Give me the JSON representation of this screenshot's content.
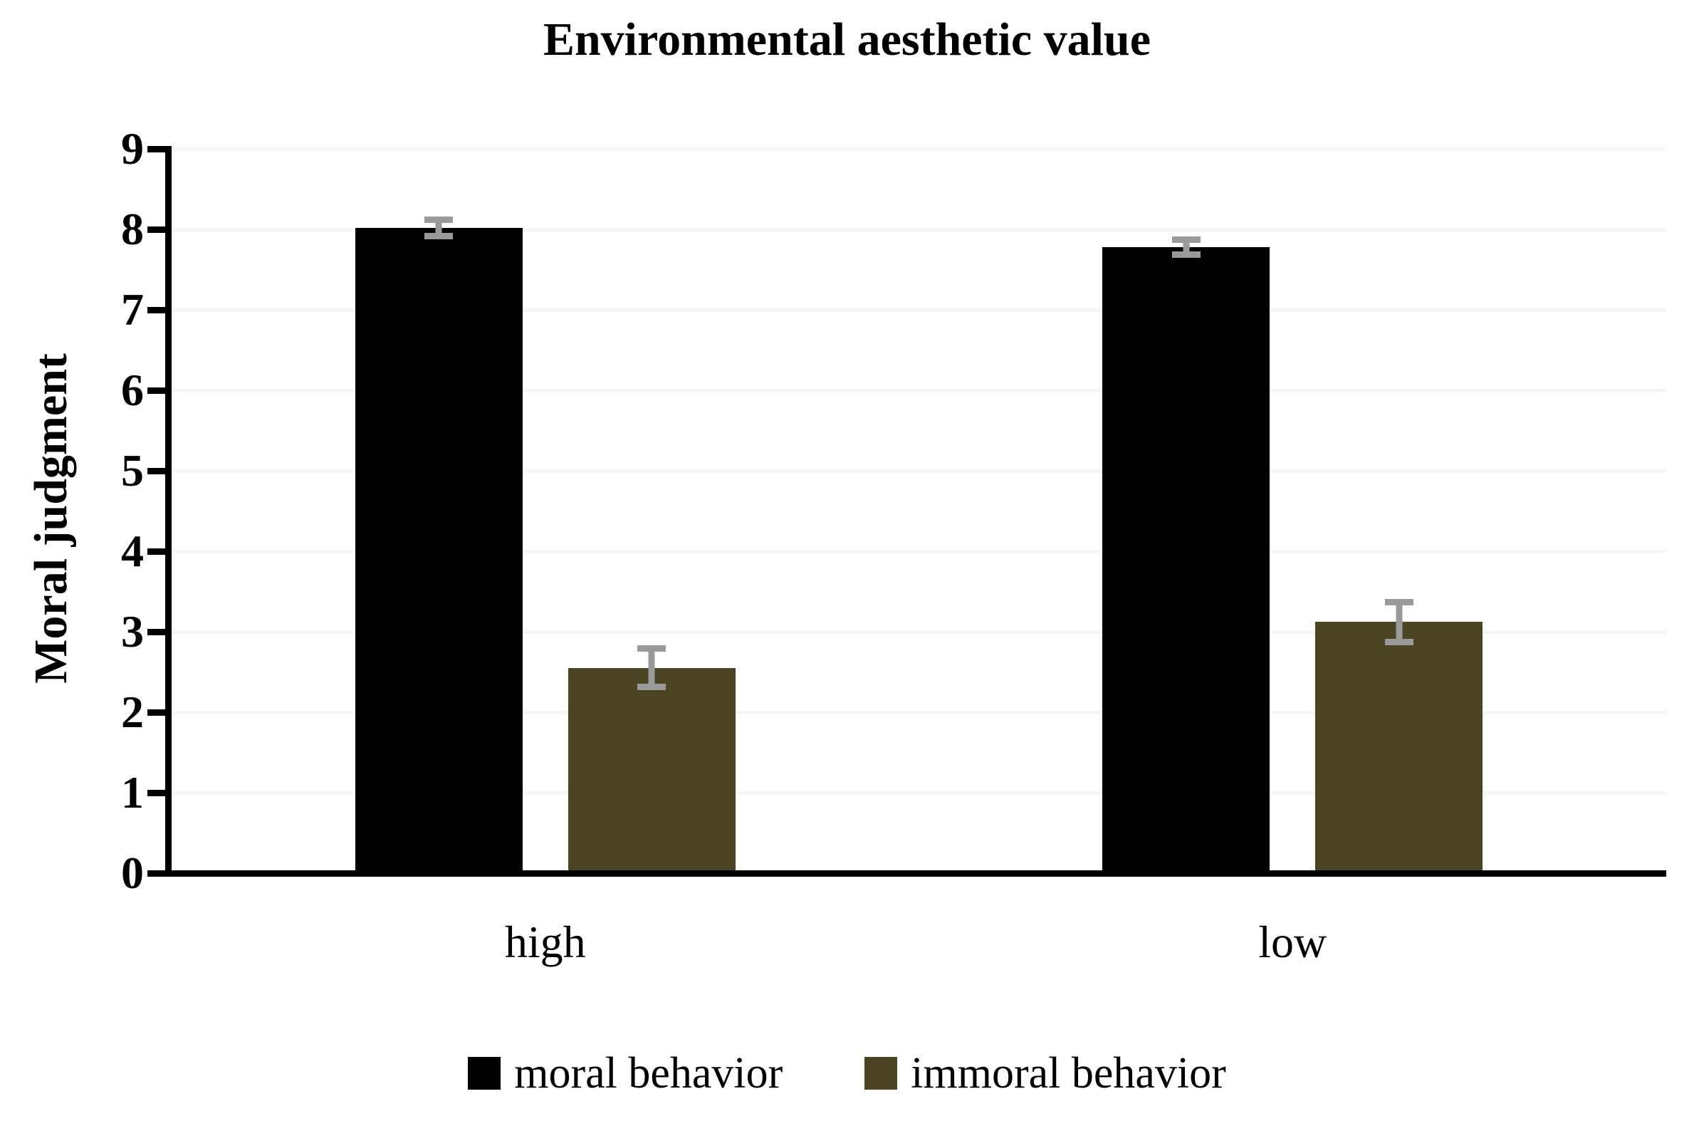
{
  "chart_data": {
    "type": "bar",
    "title": "Environmental aesthetic value",
    "ylabel": "Moral judgment",
    "xlabel": "",
    "categories": [
      "high",
      "low"
    ],
    "series": [
      {
        "name": "moral behavior",
        "color": "#000000",
        "values": [
          8.02,
          7.78
        ],
        "errors": [
          0.14,
          0.13
        ]
      },
      {
        "name": "immoral behavior",
        "color": "#4a4423",
        "values": [
          2.55,
          3.12
        ],
        "errors": [
          0.28,
          0.29
        ]
      }
    ],
    "ylim": [
      0,
      9
    ],
    "ytick_step": 1,
    "yticks": [
      0,
      1,
      2,
      3,
      4,
      5,
      6,
      7,
      8,
      9
    ],
    "grid": true,
    "legend_position": "bottom",
    "error_bar_color": "#9a9a9a",
    "gridline_color": "#f6f6f6",
    "axis_color": "#000000",
    "background_color": "#ffffff"
  }
}
